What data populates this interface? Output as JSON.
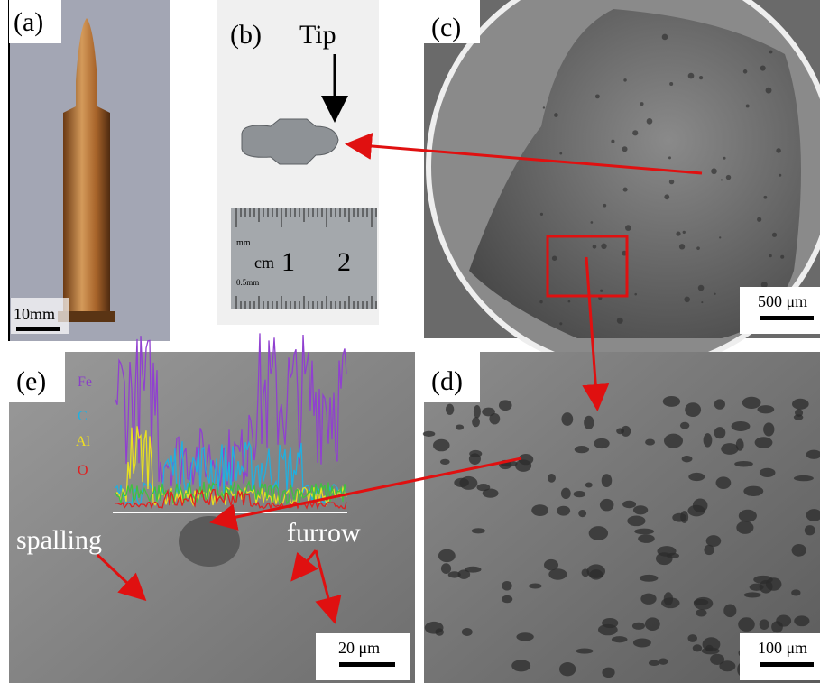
{
  "panels": [
    {
      "label": "(a)",
      "scale_bar": "10mm"
    },
    {
      "label": "(b)",
      "annotation": "Tip",
      "ruler": {
        "unit_top": "mm",
        "unit": "cm",
        "marks": [
          "1",
          "2"
        ],
        "unit_bottom": "0.5mm"
      }
    },
    {
      "label": "(c)",
      "scale_bar": "500 μm"
    },
    {
      "label": "(d)",
      "scale_bar": "100 μm"
    },
    {
      "label": "(e)",
      "scale_bar": "20 μm",
      "elements": [
        "Fe",
        "C",
        "Al",
        "O"
      ],
      "annotations": [
        "spalling",
        "furrow"
      ]
    }
  ]
}
